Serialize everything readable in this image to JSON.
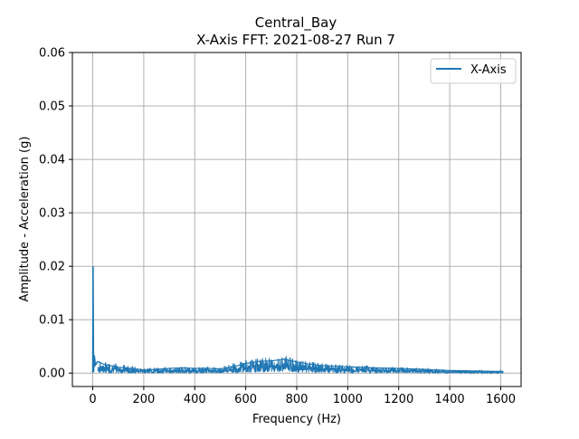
{
  "chart_data": {
    "type": "line",
    "title": "Central_Bay",
    "subtitle": "X-Axis FFT: 2021-08-27 Run 7",
    "xlabel": "Frequency (Hz)",
    "ylabel": "Amplitude - Acceleration (g)",
    "xlim": [
      -80,
      1680
    ],
    "ylim": [
      -0.0025,
      0.06
    ],
    "xticks": [
      0,
      200,
      400,
      600,
      800,
      1000,
      1200,
      1400,
      1600
    ],
    "yticks": [
      0.0,
      0.01,
      0.02,
      0.03,
      0.04,
      0.05,
      0.06
    ],
    "xtick_labels": [
      "0",
      "200",
      "400",
      "600",
      "800",
      "1000",
      "1200",
      "1400",
      "1600"
    ],
    "ytick_labels": [
      "0.00",
      "0.01",
      "0.02",
      "0.03",
      "0.04",
      "0.05",
      "0.06"
    ],
    "grid": true,
    "legend": "top-right",
    "color": "#1f77b4",
    "series": [
      {
        "name": "X-Axis",
        "x": [
          0,
          1,
          3,
          6,
          10,
          20,
          40,
          60,
          80,
          100,
          150,
          200,
          250,
          300,
          350,
          400,
          450,
          500,
          550,
          600,
          650,
          700,
          750,
          800,
          850,
          900,
          950,
          1000,
          1100,
          1200,
          1300,
          1400,
          1500,
          1600,
          1610
        ],
        "y": [
          0.0001,
          0.02,
          0.0002,
          0.0033,
          0.0015,
          0.0022,
          0.0017,
          0.0015,
          0.0013,
          0.0011,
          0.0009,
          0.0006,
          0.0007,
          0.0009,
          0.001,
          0.0009,
          0.0009,
          0.0008,
          0.0012,
          0.0018,
          0.0022,
          0.0023,
          0.0026,
          0.0021,
          0.0017,
          0.0014,
          0.0013,
          0.0012,
          0.001,
          0.0009,
          0.0007,
          0.0005,
          0.0004,
          0.0003,
          0.0002
        ],
        "noise_envelope": {
          "x": [
            20,
            200,
            500,
            600,
            700,
            760,
            800,
            900,
            1000,
            1200,
            1400,
            1600
          ],
          "upper": [
            0.0023,
            0.001,
            0.0012,
            0.0025,
            0.003,
            0.0033,
            0.0024,
            0.0019,
            0.0015,
            0.0012,
            0.0006,
            0.0004
          ],
          "lower": [
            0.0,
            0.0,
            0.0,
            0.0001,
            0.0002,
            0.0003,
            0.0001,
            0.0,
            0.0,
            0.0,
            0.0,
            0.0
          ]
        }
      }
    ]
  }
}
